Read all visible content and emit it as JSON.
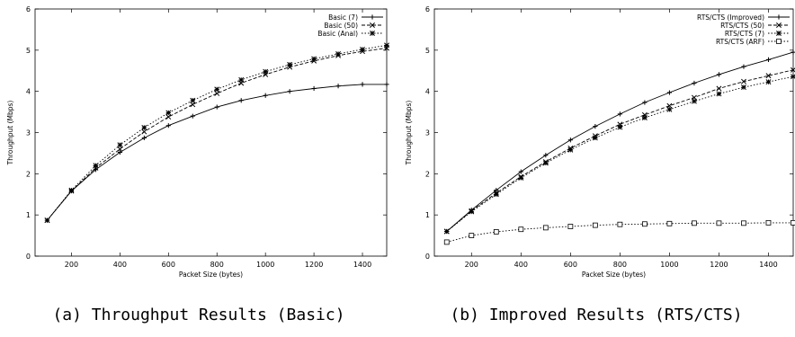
{
  "captions": [
    "(a) Throughput Results (Basic)",
    "(b) Improved Results (RTS/CTS)"
  ],
  "chart_data": [
    {
      "type": "line",
      "title": "",
      "xlabel": "Packet Size (bytes)",
      "ylabel": "Throughput (Mbps)",
      "xlim": [
        50,
        1500
      ],
      "ylim": [
        0,
        6
      ],
      "xticks": [
        200,
        400,
        600,
        800,
        1000,
        1200,
        1400
      ],
      "yticks": [
        0,
        1,
        2,
        3,
        4,
        5,
        6
      ],
      "grid": false,
      "legend_position": "top-right",
      "x": [
        100,
        200,
        300,
        400,
        500,
        600,
        700,
        800,
        900,
        1000,
        1100,
        1200,
        1300,
        1400,
        1500
      ],
      "series": [
        {
          "name": "Basic (7)",
          "marker": "plus",
          "dash": "solid",
          "values": [
            0.87,
            1.58,
            2.1,
            2.52,
            2.87,
            3.17,
            3.4,
            3.62,
            3.78,
            3.9,
            4.0,
            4.07,
            4.13,
            4.17,
            4.17
          ]
        },
        {
          "name": "Basic (50)",
          "marker": "x",
          "dash": "dashed",
          "values": [
            0.87,
            1.58,
            2.14,
            2.6,
            3.02,
            3.38,
            3.68,
            3.95,
            4.2,
            4.41,
            4.59,
            4.74,
            4.87,
            4.97,
            5.05
          ]
        },
        {
          "name": "Basic (Anal)",
          "marker": "star",
          "dash": "dotted",
          "values": [
            0.87,
            1.6,
            2.2,
            2.7,
            3.12,
            3.48,
            3.78,
            4.05,
            4.28,
            4.48,
            4.65,
            4.79,
            4.91,
            5.02,
            5.12
          ]
        }
      ]
    },
    {
      "type": "line",
      "title": "",
      "xlabel": "Packet Size (bytes)",
      "ylabel": "Throughput (Mbps)",
      "xlim": [
        50,
        1500
      ],
      "ylim": [
        0,
        6
      ],
      "xticks": [
        200,
        400,
        600,
        800,
        1000,
        1200,
        1400
      ],
      "yticks": [
        0,
        1,
        2,
        3,
        4,
        5,
        6
      ],
      "grid": false,
      "legend_position": "top-right",
      "x": [
        100,
        200,
        300,
        400,
        500,
        600,
        700,
        800,
        900,
        1000,
        1100,
        1200,
        1300,
        1400,
        1500
      ],
      "series": [
        {
          "name": "RTS/CTS (Improved)",
          "marker": "plus",
          "dash": "solid",
          "values": [
            0.6,
            1.12,
            1.6,
            2.05,
            2.45,
            2.82,
            3.15,
            3.45,
            3.73,
            3.97,
            4.2,
            4.41,
            4.6,
            4.77,
            4.95
          ]
        },
        {
          "name": "RTS/CTS (50)",
          "marker": "x",
          "dash": "dashed",
          "values": [
            0.6,
            1.1,
            1.53,
            1.93,
            2.29,
            2.62,
            2.92,
            3.2,
            3.43,
            3.65,
            3.85,
            4.07,
            4.24,
            4.38,
            4.52
          ]
        },
        {
          "name": "RTS/CTS (7)",
          "marker": "star",
          "dash": "dotted",
          "values": [
            0.6,
            1.08,
            1.5,
            1.9,
            2.26,
            2.58,
            2.87,
            3.13,
            3.36,
            3.56,
            3.76,
            3.94,
            4.1,
            4.23,
            4.36
          ]
        },
        {
          "name": "RTS/CTS (ARF)",
          "marker": "square",
          "dash": "dotted",
          "values": [
            0.34,
            0.5,
            0.59,
            0.65,
            0.69,
            0.72,
            0.75,
            0.77,
            0.78,
            0.79,
            0.8,
            0.8,
            0.8,
            0.81,
            0.81
          ]
        }
      ]
    }
  ]
}
